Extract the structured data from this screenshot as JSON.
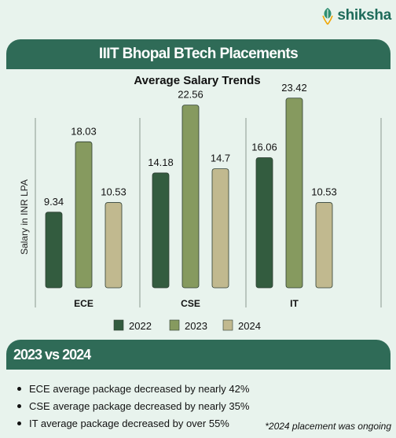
{
  "logo": {
    "text": "shiksha",
    "icon": "shiksha-leaf-logo"
  },
  "header": {
    "title": "IIIT Bhopal BTech Placements"
  },
  "chart_data": {
    "type": "bar",
    "title": "Average Salary Trends",
    "ylabel": "Salary in INR LPA",
    "xlabel": "",
    "categories": [
      "ECE",
      "CSE",
      "IT"
    ],
    "series": [
      {
        "name": "2022",
        "values": [
          9.34,
          14.18,
          16.06
        ],
        "color": "#335c3f"
      },
      {
        "name": "2023",
        "values": [
          18.03,
          22.56,
          23.42
        ],
        "color": "#869a5f"
      },
      {
        "name": "2024",
        "values": [
          10.53,
          14.7,
          10.53
        ],
        "color": "#c1b98f"
      }
    ],
    "ylim": [
      0,
      25
    ],
    "grid": false,
    "legend": "bottom"
  },
  "section": {
    "title": "2023 vs 2024"
  },
  "bullets": [
    "ECE average package decreased by nearly 42%",
    "CSE average package decreased by nearly 35%",
    "IT average package decreased by over 55%"
  ],
  "footnote": "*2024 placement was ongoing"
}
